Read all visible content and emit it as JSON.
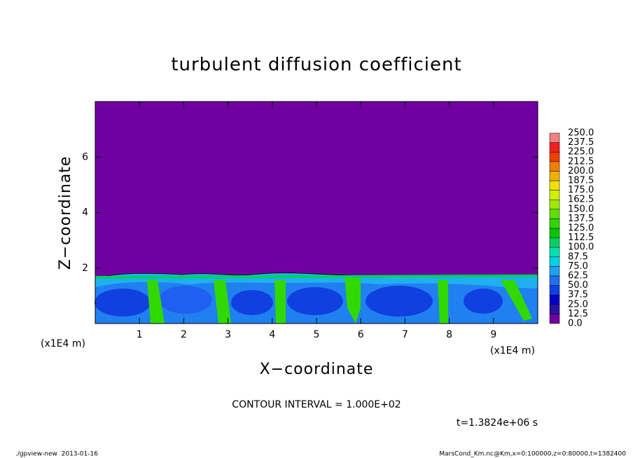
{
  "chart_data": {
    "type": "contour",
    "title": "turbulent diffusion coefficient",
    "x_label": "X−coordinate",
    "y_label": "Z−coordinate",
    "x_unit": "(x1E4 m)",
    "y_unit": "(x1E4 m)",
    "xlim": [
      0,
      10
    ],
    "ylim": [
      0,
      8
    ],
    "xticks": [
      1,
      2,
      3,
      4,
      5,
      6,
      7,
      8,
      9
    ],
    "yticks": [
      2,
      4,
      6
    ],
    "colorbar": {
      "levels": [
        {
          "value": 0,
          "label": "0.0"
        },
        {
          "value": 12.5,
          "label": "12.5"
        },
        {
          "value": 25,
          "label": "25.0"
        },
        {
          "value": 37.5,
          "label": "37.5"
        },
        {
          "value": 50,
          "label": "50.0"
        },
        {
          "value": 62.5,
          "label": "62.5"
        },
        {
          "value": 75,
          "label": "75.0"
        },
        {
          "value": 87.5,
          "label": "87.5"
        },
        {
          "value": 100,
          "label": "100.0"
        },
        {
          "value": 112.5,
          "label": "112.5"
        },
        {
          "value": 125,
          "label": "125.0"
        },
        {
          "value": 137.5,
          "label": "137.5"
        },
        {
          "value": 150,
          "label": "150.0"
        },
        {
          "value": 162.5,
          "label": "162.5"
        },
        {
          "value": 175,
          "label": "175.0"
        },
        {
          "value": 187.5,
          "label": "187.5"
        },
        {
          "value": 200,
          "label": "200.0"
        },
        {
          "value": 212.5,
          "label": "212.5"
        },
        {
          "value": 225,
          "label": "225.0"
        },
        {
          "value": 237.5,
          "label": "237.5"
        },
        {
          "value": 250,
          "label": "250.0"
        }
      ],
      "colors": [
        "#7000a0",
        "#2a10a8",
        "#0000c8",
        "#1040e0",
        "#2070f0",
        "#20a0f0",
        "#00d0e8",
        "#00e0b0",
        "#00d060",
        "#00c800",
        "#30d800",
        "#60e000",
        "#a0e800",
        "#d0f000",
        "#f0e000",
        "#f0b000",
        "#f08000",
        "#f04000",
        "#f02020",
        "#f08080"
      ]
    },
    "contour_interval": "CONTOUR INTERVAL = 1.000E+02",
    "time_label": "t=1.3824e+06 s",
    "footer_left": "./gpview-new  2013-01-16",
    "footer_right": "MarsCond_Km.nc@Km,x=0:100000,z=0:80000,t=1382400"
  }
}
